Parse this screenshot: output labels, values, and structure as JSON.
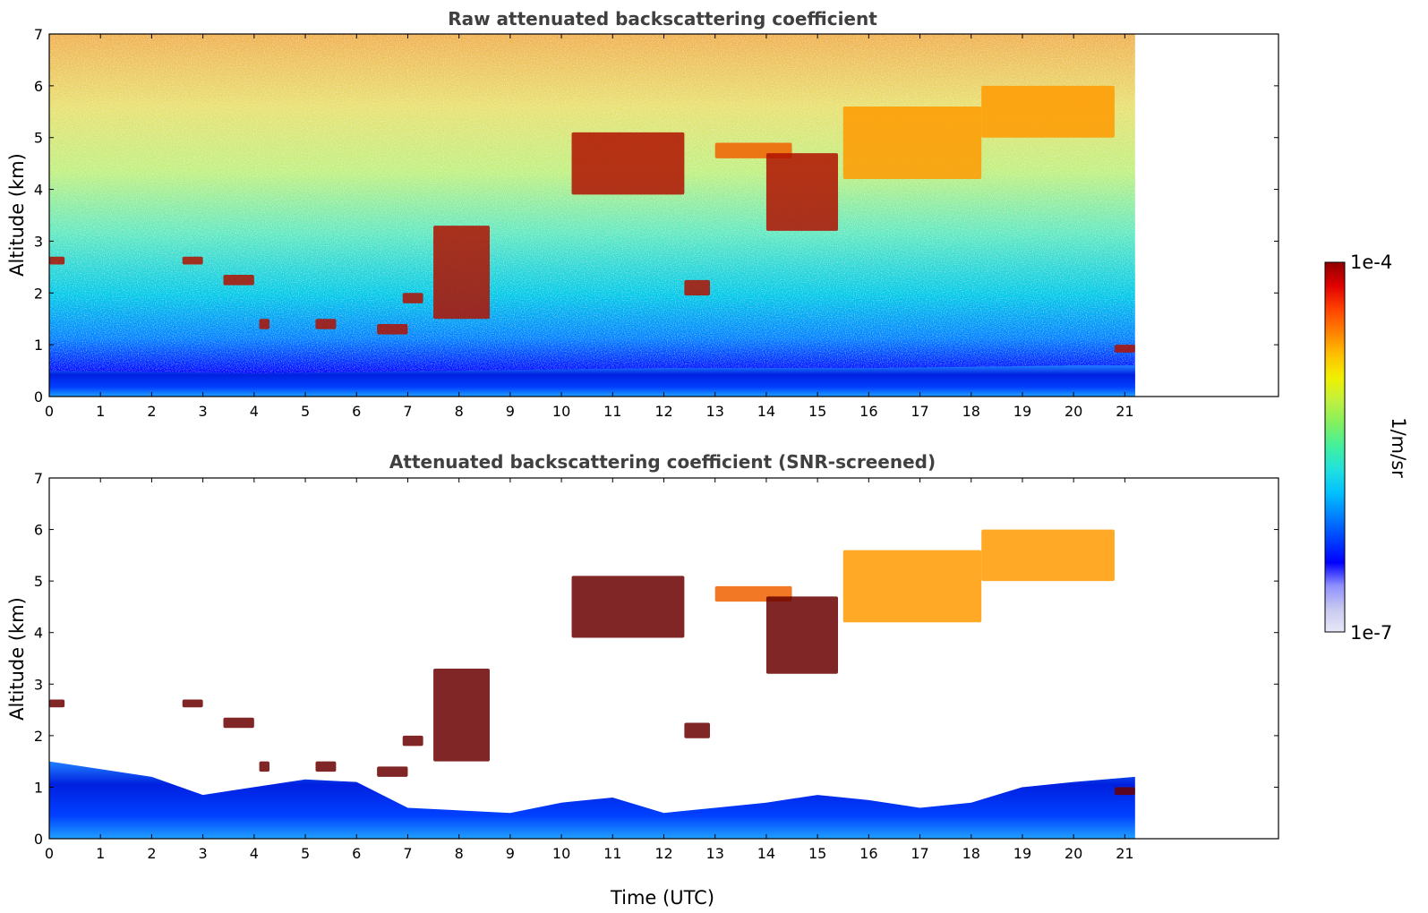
{
  "chart_data": [
    {
      "type": "heatmap",
      "title": "Raw attenuated backscattering coefficient",
      "xlabel": "",
      "ylabel": "Altitude (km)",
      "xlim": [
        0,
        24
      ],
      "ylim": [
        0,
        7
      ],
      "x_ticks": [
        "0",
        "1",
        "2",
        "3",
        "4",
        "5",
        "6",
        "7",
        "8",
        "9",
        "10",
        "11",
        "12",
        "13",
        "14",
        "15",
        "16",
        "17",
        "18",
        "19",
        "20",
        "21"
      ],
      "y_ticks": [
        "0",
        "1",
        "2",
        "3",
        "4",
        "5",
        "6",
        "7"
      ],
      "data_extent_time_utc": [
        0,
        21.2
      ],
      "screened": false,
      "features": {
        "boundary_layer_top_km": [
          [
            0,
            0.5
          ],
          [
            4,
            0.45
          ],
          [
            8,
            0.5
          ],
          [
            12,
            0.55
          ],
          [
            16,
            0.55
          ],
          [
            20,
            0.6
          ],
          [
            21.2,
            0.6
          ]
        ],
        "cloud_layers": [
          {
            "t": [
              0.0,
              0.3
            ],
            "alt": [
              2.55,
              2.7
            ]
          },
          {
            "t": [
              2.6,
              3.0
            ],
            "alt": [
              2.55,
              2.7
            ]
          },
          {
            "t": [
              3.4,
              4.0
            ],
            "alt": [
              2.15,
              2.35
            ]
          },
          {
            "t": [
              4.1,
              4.3
            ],
            "alt": [
              1.3,
              1.5
            ]
          },
          {
            "t": [
              5.2,
              5.6
            ],
            "alt": [
              1.3,
              1.5
            ]
          },
          {
            "t": [
              6.4,
              7.0
            ],
            "alt": [
              1.2,
              1.4
            ]
          },
          {
            "t": [
              6.9,
              7.3
            ],
            "alt": [
              1.8,
              2.0
            ]
          },
          {
            "t": [
              7.5,
              8.6
            ],
            "alt": [
              1.5,
              3.3
            ]
          },
          {
            "t": [
              10.2,
              12.4
            ],
            "alt": [
              3.9,
              5.1
            ]
          },
          {
            "t": [
              12.4,
              12.9
            ],
            "alt": [
              1.95,
              2.25
            ]
          },
          {
            "t": [
              13.0,
              14.5
            ],
            "alt": [
              4.6,
              4.9
            ]
          },
          {
            "t": [
              14.0,
              15.4
            ],
            "alt": [
              3.2,
              4.7
            ]
          },
          {
            "t": [
              15.5,
              18.2
            ],
            "alt": [
              4.2,
              5.6
            ]
          },
          {
            "t": [
              18.2,
              20.8
            ],
            "alt": [
              5.0,
              6.0
            ]
          },
          {
            "t": [
              20.8,
              21.2
            ],
            "alt": [
              0.85,
              1.0
            ]
          }
        ]
      }
    },
    {
      "type": "heatmap",
      "title": "Attenuated backscattering coefficient (SNR-screened)",
      "xlabel": "Time (UTC)",
      "ylabel": "Altitude (km)",
      "xlim": [
        0,
        24
      ],
      "ylim": [
        0,
        7
      ],
      "x_ticks": [
        "0",
        "1",
        "2",
        "3",
        "4",
        "5",
        "6",
        "7",
        "8",
        "9",
        "10",
        "11",
        "12",
        "13",
        "14",
        "15",
        "16",
        "17",
        "18",
        "19",
        "20",
        "21"
      ],
      "y_ticks": [
        "0",
        "1",
        "2",
        "3",
        "4",
        "5",
        "6",
        "7"
      ],
      "data_extent_time_utc": [
        0,
        21.2
      ],
      "screened": true,
      "features": {
        "screened_top_km": [
          [
            0,
            1.5
          ],
          [
            2,
            1.2
          ],
          [
            3,
            0.85
          ],
          [
            4,
            1.0
          ],
          [
            5,
            1.15
          ],
          [
            6,
            1.1
          ],
          [
            7,
            0.6
          ],
          [
            8,
            0.55
          ],
          [
            9,
            0.5
          ],
          [
            10,
            0.7
          ],
          [
            11,
            0.8
          ],
          [
            12,
            0.5
          ],
          [
            13,
            0.6
          ],
          [
            14,
            0.7
          ],
          [
            15,
            0.85
          ],
          [
            16,
            0.75
          ],
          [
            17,
            0.6
          ],
          [
            18,
            0.7
          ],
          [
            19,
            1.0
          ],
          [
            20,
            1.1
          ],
          [
            21.2,
            1.2
          ]
        ],
        "cloud_layers": [
          {
            "t": [
              0.0,
              0.3
            ],
            "alt": [
              2.55,
              2.7
            ]
          },
          {
            "t": [
              2.6,
              3.0
            ],
            "alt": [
              2.55,
              2.7
            ]
          },
          {
            "t": [
              3.4,
              4.0
            ],
            "alt": [
              2.15,
              2.35
            ]
          },
          {
            "t": [
              4.1,
              4.3
            ],
            "alt": [
              1.3,
              1.5
            ]
          },
          {
            "t": [
              5.2,
              5.6
            ],
            "alt": [
              1.3,
              1.5
            ]
          },
          {
            "t": [
              6.4,
              7.0
            ],
            "alt": [
              1.2,
              1.4
            ]
          },
          {
            "t": [
              6.9,
              7.3
            ],
            "alt": [
              1.8,
              2.0
            ]
          },
          {
            "t": [
              7.5,
              8.6
            ],
            "alt": [
              1.5,
              3.3
            ]
          },
          {
            "t": [
              10.2,
              12.4
            ],
            "alt": [
              3.9,
              5.1
            ]
          },
          {
            "t": [
              12.4,
              12.9
            ],
            "alt": [
              1.95,
              2.25
            ]
          },
          {
            "t": [
              13.0,
              14.5
            ],
            "alt": [
              4.6,
              4.9
            ]
          },
          {
            "t": [
              14.0,
              15.4
            ],
            "alt": [
              3.2,
              4.7
            ]
          },
          {
            "t": [
              15.5,
              18.2
            ],
            "alt": [
              4.2,
              5.6
            ]
          },
          {
            "t": [
              18.2,
              20.8
            ],
            "alt": [
              5.0,
              6.0
            ]
          },
          {
            "t": [
              20.8,
              21.2
            ],
            "alt": [
              0.85,
              1.0
            ]
          }
        ]
      }
    }
  ],
  "colorbar": {
    "label": "1/m/sr",
    "max_label": "1e-4",
    "min_label": "1e-7",
    "scale": "log",
    "colormap": [
      "#e8e8f8",
      "#c8c8f0",
      "#9090ff",
      "#0000ff",
      "#0040ff",
      "#0080ff",
      "#00c0ff",
      "#20e0e0",
      "#40f0a0",
      "#80f060",
      "#c0f040",
      "#f0f000",
      "#ffc000",
      "#ff8000",
      "#ff4000",
      "#e00000",
      "#900000"
    ]
  }
}
